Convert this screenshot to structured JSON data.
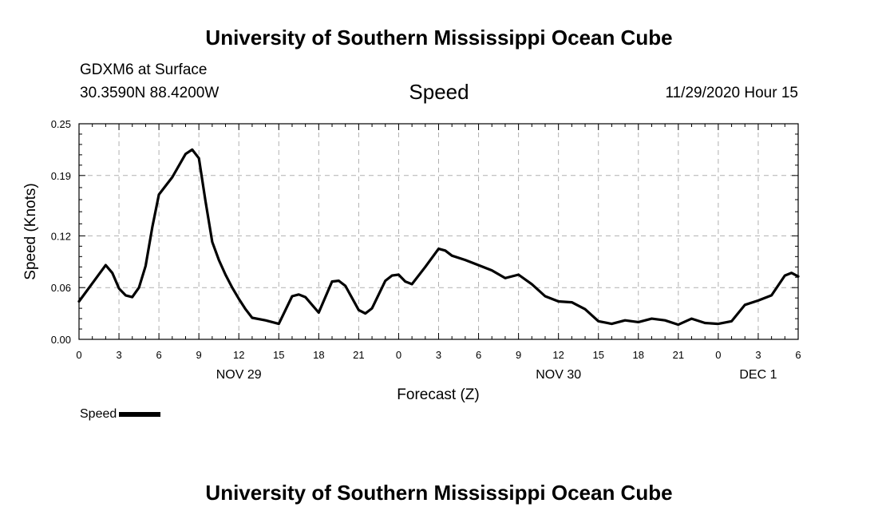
{
  "header": {
    "top_title": "University of Southern Mississippi Ocean Cube",
    "station": "GDXM6 at Surface",
    "coords": "30.3590N 88.4200W",
    "datetime": "11/29/2020 Hour 15"
  },
  "footer": {
    "bottom_title": "University of Southern Mississippi Ocean Cube"
  },
  "legend": {
    "label": "Speed"
  },
  "chart_data": {
    "type": "line",
    "title": "Speed",
    "xlabel": "Forecast (Z)",
    "ylabel": "Speed (Knots)",
    "ylim": [
      0,
      0.25
    ],
    "xlim": [
      0,
      54
    ],
    "yticks": [
      0.0,
      0.06,
      0.12,
      0.19,
      0.25
    ],
    "ytick_labels": [
      "0.00",
      "0.06",
      "0.12",
      "0.19",
      "0.25"
    ],
    "xticks": [
      0,
      3,
      6,
      9,
      12,
      15,
      18,
      21,
      24,
      27,
      30,
      33,
      36,
      39,
      42,
      45,
      48,
      51,
      54
    ],
    "xtick_labels": [
      "0",
      "3",
      "6",
      "9",
      "12",
      "15",
      "18",
      "21",
      "0",
      "3",
      "6",
      "9",
      "12",
      "15",
      "18",
      "21",
      "0",
      "3",
      "6"
    ],
    "day_labels": [
      {
        "hour": 12,
        "label": "NOV 29"
      },
      {
        "hour": 36,
        "label": "NOV 30"
      },
      {
        "hour": 51,
        "label": "DEC 1"
      }
    ],
    "grid": true,
    "series": [
      {
        "name": "Speed",
        "color": "#000000",
        "x": [
          0,
          1,
          2,
          2.5,
          3,
          3.5,
          4,
          4.5,
          5,
          5.5,
          6,
          7,
          8,
          8.5,
          9,
          9.5,
          10,
          10.5,
          11,
          11.5,
          12,
          12.5,
          13,
          14,
          15,
          16,
          16.5,
          17,
          18,
          19,
          19.5,
          20,
          21,
          21.5,
          22,
          23,
          23.5,
          24,
          24.5,
          25,
          26,
          27,
          27.5,
          28,
          29,
          30,
          31,
          32,
          33,
          34,
          35,
          36,
          37,
          38,
          39,
          40,
          41,
          42,
          43,
          44,
          45,
          46,
          47,
          48,
          49,
          50,
          51,
          52,
          53,
          53.5,
          54
        ],
        "y": [
          0.044,
          0.065,
          0.086,
          0.077,
          0.059,
          0.051,
          0.049,
          0.06,
          0.085,
          0.13,
          0.168,
          0.188,
          0.215,
          0.22,
          0.21,
          0.16,
          0.113,
          0.092,
          0.075,
          0.06,
          0.047,
          0.035,
          0.025,
          0.022,
          0.018,
          0.05,
          0.052,
          0.049,
          0.031,
          0.067,
          0.068,
          0.062,
          0.034,
          0.03,
          0.036,
          0.068,
          0.074,
          0.075,
          0.067,
          0.064,
          0.084,
          0.105,
          0.103,
          0.097,
          0.092,
          0.086,
          0.08,
          0.071,
          0.075,
          0.064,
          0.05,
          0.044,
          0.043,
          0.035,
          0.021,
          0.018,
          0.022,
          0.02,
          0.024,
          0.022,
          0.017,
          0.024,
          0.019,
          0.018,
          0.021,
          0.04,
          0.045,
          0.051,
          0.074,
          0.077,
          0.073
        ]
      }
    ]
  }
}
